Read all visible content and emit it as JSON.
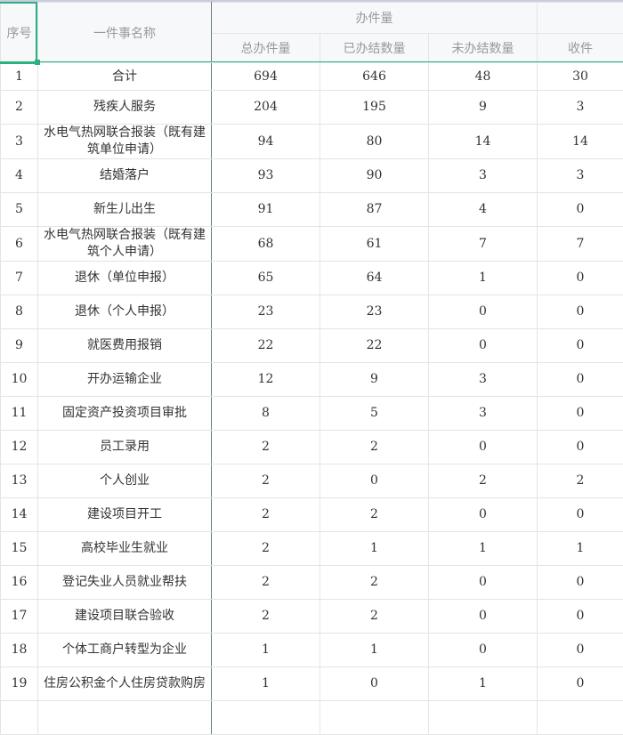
{
  "header": {
    "seq": "序号",
    "name": "一件事名称",
    "group": "办件量",
    "cols": [
      "总办件量",
      "已办结数量",
      "未办结数量",
      "收件"
    ]
  },
  "rows": [
    {
      "seq": "1",
      "name": "合计",
      "total": "694",
      "done": "646",
      "pending": "48",
      "received": "30"
    },
    {
      "seq": "2",
      "name": "残疾人服务",
      "total": "204",
      "done": "195",
      "pending": "9",
      "received": "3"
    },
    {
      "seq": "3",
      "name": "水电气热网联合报装（既有建筑单位申请）",
      "total": "94",
      "done": "80",
      "pending": "14",
      "received": "14"
    },
    {
      "seq": "4",
      "name": "结婚落户",
      "total": "93",
      "done": "90",
      "pending": "3",
      "received": "3"
    },
    {
      "seq": "5",
      "name": "新生儿出生",
      "total": "91",
      "done": "87",
      "pending": "4",
      "received": "0"
    },
    {
      "seq": "6",
      "name": "水电气热网联合报装（既有建筑个人申请）",
      "total": "68",
      "done": "61",
      "pending": "7",
      "received": "7"
    },
    {
      "seq": "7",
      "name": "退休（单位申报）",
      "total": "65",
      "done": "64",
      "pending": "1",
      "received": "0"
    },
    {
      "seq": "8",
      "name": "退休（个人申报）",
      "total": "23",
      "done": "23",
      "pending": "0",
      "received": "0"
    },
    {
      "seq": "9",
      "name": "就医费用报销",
      "total": "22",
      "done": "22",
      "pending": "0",
      "received": "0"
    },
    {
      "seq": "10",
      "name": "开办运输企业",
      "total": "12",
      "done": "9",
      "pending": "3",
      "received": "0"
    },
    {
      "seq": "11",
      "name": "固定资产投资项目审批",
      "total": "8",
      "done": "5",
      "pending": "3",
      "received": "0"
    },
    {
      "seq": "12",
      "name": "员工录用",
      "total": "2",
      "done": "2",
      "pending": "0",
      "received": "0"
    },
    {
      "seq": "13",
      "name": "个人创业",
      "total": "2",
      "done": "0",
      "pending": "2",
      "received": "2"
    },
    {
      "seq": "14",
      "name": "建设项目开工",
      "total": "2",
      "done": "2",
      "pending": "0",
      "received": "0"
    },
    {
      "seq": "15",
      "name": "高校毕业生就业",
      "total": "2",
      "done": "1",
      "pending": "1",
      "received": "1"
    },
    {
      "seq": "16",
      "name": "登记失业人员就业帮扶",
      "total": "2",
      "done": "2",
      "pending": "0",
      "received": "0"
    },
    {
      "seq": "17",
      "name": "建设项目联合验收",
      "total": "2",
      "done": "2",
      "pending": "0",
      "received": "0"
    },
    {
      "seq": "18",
      "name": "个体工商户转型为企业",
      "total": "1",
      "done": "1",
      "pending": "0",
      "received": "0"
    },
    {
      "seq": "19",
      "name": "住房公积金个人住房贷款购房",
      "total": "1",
      "done": "0",
      "pending": "1",
      "received": "0"
    }
  ],
  "colors": {
    "selection": "#2bb07f",
    "header_bg": "#f7f8fa",
    "grid": "#e3e4e8"
  }
}
